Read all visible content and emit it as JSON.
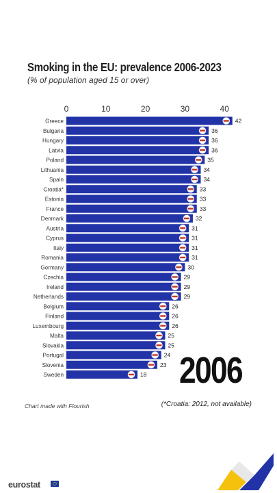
{
  "header": {
    "title": "Smoking in the EU: prevalence 2006-2023",
    "subtitle": "(% of population aged 15 or over)"
  },
  "year_label": "2006",
  "credit": "Chart made with Flourish",
  "footnote": "(*Croatia: 2012, not available)",
  "logo": {
    "text": "eurostat",
    "flag_icon": "eu-flag-icon"
  },
  "colors": {
    "bar": "#2233a8",
    "axis_text": "#333333",
    "year_text": "#111111",
    "accent_yellow": "#f4c20d",
    "accent_blue": "#2233a8"
  },
  "chart_data": {
    "type": "bar",
    "orientation": "horizontal",
    "xlim": [
      0,
      45
    ],
    "xticks": [
      0,
      10,
      20,
      30,
      40
    ],
    "categories": [
      "Greece",
      "Bulgaria",
      "Hungary",
      "Latvia",
      "Poland",
      "Lithuania",
      "Spain",
      "Croatia*",
      "Estonia",
      "France",
      "Denmark",
      "Austria",
      "Cyprus",
      "Italy",
      "Romania",
      "Germany",
      "Czechia",
      "Ireland",
      "Netherlands",
      "Belgium",
      "Finland",
      "Luxembourg",
      "Malta",
      "Slovakia",
      "Portugal",
      "Slovenia",
      "Sweden"
    ],
    "values": [
      42,
      36,
      36,
      36,
      35,
      34,
      34,
      33,
      33,
      33,
      32,
      31,
      31,
      31,
      31,
      30,
      29,
      29,
      29,
      26,
      26,
      26,
      25,
      25,
      24,
      23,
      18
    ],
    "flag_icons": [
      "greece-flag-icon",
      "bulgaria-flag-icon",
      "hungary-flag-icon",
      "latvia-flag-icon",
      "poland-flag-icon",
      "lithuania-flag-icon",
      "spain-flag-icon",
      "croatia-flag-icon",
      "estonia-flag-icon",
      "france-flag-icon",
      "denmark-flag-icon",
      "austria-flag-icon",
      "cyprus-flag-icon",
      "italy-flag-icon",
      "romania-flag-icon",
      "germany-flag-icon",
      "czechia-flag-icon",
      "ireland-flag-icon",
      "netherlands-flag-icon",
      "belgium-flag-icon",
      "finland-flag-icon",
      "luxembourg-flag-icon",
      "malta-flag-icon",
      "slovakia-flag-icon",
      "portugal-flag-icon",
      "slovenia-flag-icon",
      "sweden-flag-icon"
    ],
    "grid": false,
    "axis_position": "top"
  }
}
